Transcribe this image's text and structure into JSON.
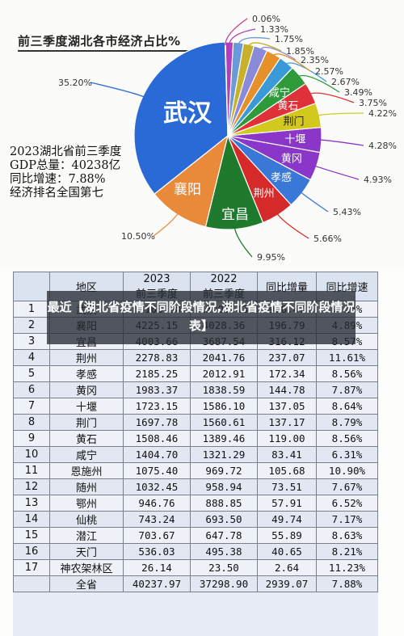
{
  "overlay_caption": "最近【湖北省疫情不同阶段情况,湖北省疫情不同阶段情况表】",
  "chart_data": [
    {
      "type": "pie",
      "title": "前三季度湖北各市经济占比%",
      "summary_lines": [
        "2023湖北省前三季度",
        "GDP总量：40238亿",
        "同比增速：7.88%",
        "经济排名全国第七"
      ],
      "slices": [
        {
          "name": "武汉",
          "value": 35.2,
          "label": "35.20%",
          "color": "#2a6ad6"
        },
        {
          "name": "襄阳",
          "value": 10.5,
          "label": "10.50%",
          "color": "#e98a3a"
        },
        {
          "name": "宜昌",
          "value": 9.95,
          "label": "9.95%",
          "color": "#1f7a2e"
        },
        {
          "name": "荆州",
          "value": 5.66,
          "label": "5.66%",
          "color": "#d62a2a"
        },
        {
          "name": "孝感",
          "value": 5.43,
          "label": "5.43%",
          "color": "#3a78d8"
        },
        {
          "name": "黄冈",
          "value": 4.93,
          "label": "4.93%",
          "color": "#8a36c8"
        },
        {
          "name": "十堰",
          "value": 4.28,
          "label": "4.28%",
          "color": "#8a36c8"
        },
        {
          "name": "荆门",
          "value": 4.22,
          "label": "4.22%",
          "color": "#d3c81e"
        },
        {
          "name": "黄石",
          "value": 3.75,
          "label": "3.75%",
          "color": "#e0303a"
        },
        {
          "name": "咸宁",
          "value": 3.49,
          "label": "3.49%",
          "color": "#2f9a3a"
        },
        {
          "name": "恩施州",
          "value": 2.67,
          "label": "2.67%",
          "color": "#3a9ad8"
        },
        {
          "name": "随州",
          "value": 2.57,
          "label": "2.57%",
          "color": "#e6902a"
        },
        {
          "name": "鄂州",
          "value": 2.35,
          "label": "2.35%",
          "color": "#8a8ad8"
        },
        {
          "name": "仙桃",
          "value": 1.85,
          "label": "1.85%",
          "color": "#c8b02a"
        },
        {
          "name": "潜江",
          "value": 1.75,
          "label": "1.75%",
          "color": "#6a9ad8"
        },
        {
          "name": "天门",
          "value": 1.33,
          "label": "1.33%",
          "color": "#b040b8"
        },
        {
          "name": "神农架林区",
          "value": 0.06,
          "label": "0.06%",
          "color": "#c83a8a"
        }
      ]
    },
    {
      "type": "table",
      "columns": [
        "",
        "地区",
        "2023\n前三季度",
        "2022\n前三季度",
        "同比增量",
        "同比增速"
      ],
      "header_top": [
        "2023",
        "2022"
      ],
      "header_bottom": [
        "前三季度",
        "前三季度"
      ],
      "rows": [
        [
          "1",
          "武汉",
          "14163.90",
          "13205.43",
          "958.47",
          "7.26%"
        ],
        [
          "2",
          "襄阳",
          "4225.15",
          "4028.36",
          "196.79",
          "4.89%"
        ],
        [
          "3",
          "宜昌",
          "4003.66",
          "3687.54",
          "316.12",
          "8.57%"
        ],
        [
          "4",
          "荆州",
          "2278.83",
          "2041.76",
          "237.07",
          "11.61%"
        ],
        [
          "5",
          "孝感",
          "2185.25",
          "2012.91",
          "172.34",
          "8.56%"
        ],
        [
          "6",
          "黄冈",
          "1983.37",
          "1838.59",
          "144.78",
          "7.87%"
        ],
        [
          "7",
          "十堰",
          "1723.15",
          "1586.10",
          "137.05",
          "8.64%"
        ],
        [
          "8",
          "荆门",
          "1697.78",
          "1560.61",
          "137.17",
          "8.79%"
        ],
        [
          "9",
          "黄石",
          "1508.46",
          "1389.46",
          "119.00",
          "8.56%"
        ],
        [
          "10",
          "咸宁",
          "1404.70",
          "1321.29",
          "83.41",
          "6.31%"
        ],
        [
          "11",
          "恩施州",
          "1075.40",
          "969.72",
          "105.68",
          "10.90%"
        ],
        [
          "12",
          "随州",
          "1032.45",
          "958.94",
          "73.51",
          "7.67%"
        ],
        [
          "13",
          "鄂州",
          "946.76",
          "888.85",
          "57.91",
          "6.52%"
        ],
        [
          "14",
          "仙桃",
          "743.24",
          "693.50",
          "49.74",
          "7.17%"
        ],
        [
          "15",
          "潜江",
          "703.67",
          "647.78",
          "55.89",
          "8.63%"
        ],
        [
          "16",
          "天门",
          "536.03",
          "495.38",
          "40.65",
          "8.21%"
        ],
        [
          "17",
          "神农架林区",
          "26.14",
          "23.50",
          "2.64",
          "11.23%"
        ],
        [
          "",
          "全省",
          "40237.97",
          "37298.90",
          "2939.07",
          "7.88%"
        ]
      ]
    }
  ]
}
